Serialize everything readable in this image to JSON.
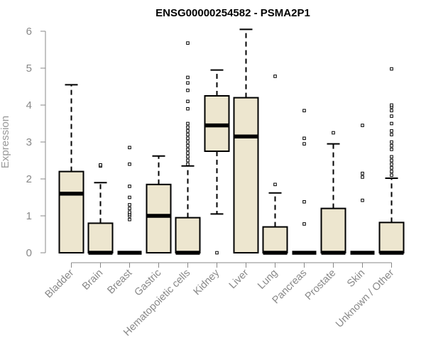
{
  "chart_data": {
    "type": "boxplot",
    "title": "ENSG00000254582 - PSMA2P1",
    "xlabel": "",
    "ylabel": "Expression",
    "ylim": [
      0,
      6
    ],
    "yticks": [
      0,
      1,
      2,
      3,
      4,
      5,
      6
    ],
    "colors": {
      "box_fill": "#ede6cf",
      "stroke": "#000000",
      "axis": "#888888"
    },
    "categories": [
      "Bladder",
      "Brain",
      "Breast",
      "Gastric",
      "Hematopoietic cells",
      "Kidney",
      "Liver",
      "Lung",
      "Pancreas",
      "Prostate",
      "Skin",
      "Unknown / Other"
    ],
    "boxes": [
      {
        "category": "Bladder",
        "q1": 0,
        "median": 1.6,
        "q3": 2.2,
        "whisker_low": 0,
        "whisker_high": 4.55,
        "outliers": []
      },
      {
        "category": "Brain",
        "q1": 0,
        "median": 0,
        "q3": 0.8,
        "whisker_low": 0,
        "whisker_high": 1.9,
        "outliers": [
          2.35,
          2.38
        ]
      },
      {
        "category": "Breast",
        "q1": 0,
        "median": 0,
        "q3": 0,
        "whisker_low": 0,
        "whisker_high": 0,
        "outliers": [
          0.9,
          1.0,
          1.05,
          1.1,
          1.2,
          1.3,
          1.5,
          1.8,
          2.4,
          2.85
        ]
      },
      {
        "category": "Gastric",
        "q1": 0,
        "median": 1.0,
        "q3": 1.85,
        "whisker_low": 0,
        "whisker_high": 2.62,
        "outliers": []
      },
      {
        "category": "Hematopoietic cells",
        "q1": 0,
        "median": 0,
        "q3": 0.95,
        "whisker_low": 0,
        "whisker_high": 2.35,
        "outliers": [
          2.4,
          2.5,
          2.6,
          2.7,
          2.8,
          2.9,
          3.0,
          3.1,
          3.2,
          3.3,
          3.4,
          3.5,
          3.9,
          4.1,
          4.4,
          4.6,
          4.75,
          5.68
        ]
      },
      {
        "category": "Kidney",
        "q1": 2.75,
        "median": 3.45,
        "q3": 4.25,
        "whisker_low": 1.05,
        "whisker_high": 4.95,
        "outliers": [
          0
        ]
      },
      {
        "category": "Liver",
        "q1": 0,
        "median": 3.15,
        "q3": 4.2,
        "whisker_low": 0,
        "whisker_high": 6.05,
        "outliers": []
      },
      {
        "category": "Lung",
        "q1": 0,
        "median": 0,
        "q3": 0.7,
        "whisker_low": 0,
        "whisker_high": 1.62,
        "outliers": [
          1.85,
          4.78
        ]
      },
      {
        "category": "Pancreas",
        "q1": 0,
        "median": 0,
        "q3": 0,
        "whisker_low": 0,
        "whisker_high": 0,
        "outliers": [
          0.78,
          1.38,
          2.95,
          3.1,
          3.85
        ]
      },
      {
        "category": "Prostate",
        "q1": 0,
        "median": 0,
        "q3": 1.2,
        "whisker_low": 0,
        "whisker_high": 2.95,
        "outliers": [
          3.25
        ]
      },
      {
        "category": "Skin",
        "q1": 0,
        "median": 0,
        "q3": 0,
        "whisker_low": 0,
        "whisker_high": 0,
        "outliers": [
          1.42,
          2.05,
          2.15,
          3.45
        ]
      },
      {
        "category": "Unknown / Other",
        "q1": 0,
        "median": 0,
        "q3": 0.82,
        "whisker_low": 0,
        "whisker_high": 2.02,
        "outliers": [
          2.1,
          2.2,
          2.3,
          2.4,
          2.5,
          2.6,
          2.8,
          2.9,
          3.0,
          3.2,
          3.3,
          3.5,
          3.7,
          3.85,
          3.95,
          4.0,
          4.98
        ]
      }
    ]
  }
}
